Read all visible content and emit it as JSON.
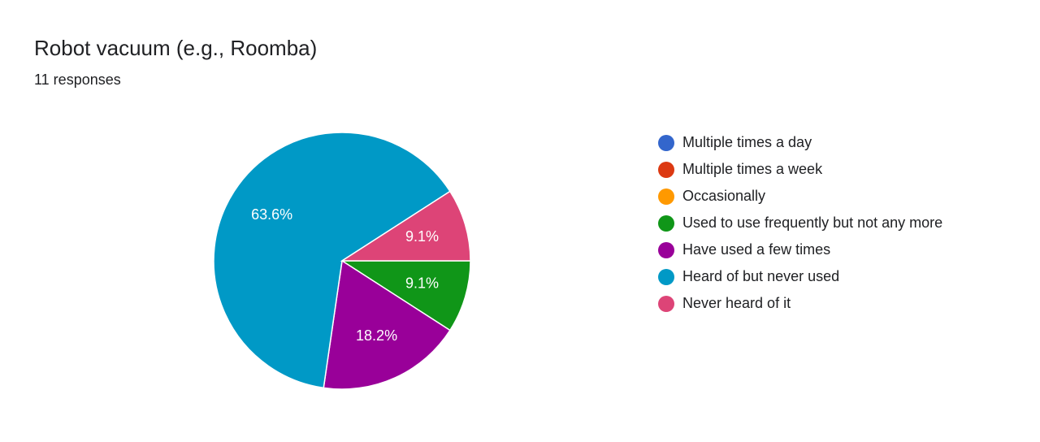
{
  "chart_data": {
    "type": "pie",
    "title": "Robot vacuum (e.g., Roomba)",
    "subtitle": "11 responses",
    "categories": [
      "Multiple times a day",
      "Multiple times a week",
      "Occasionally",
      "Used to use frequently but not any more",
      "Have used a few times",
      "Heard of but never used",
      "Never heard of it"
    ],
    "values": [
      0,
      0,
      0,
      9.1,
      18.2,
      63.6,
      9.1
    ],
    "value_labels": [
      null,
      null,
      null,
      "9.1%",
      "18.2%",
      "63.6%",
      "9.1%"
    ],
    "colors": [
      "#3366cc",
      "#dc3912",
      "#ff9900",
      "#109618",
      "#990099",
      "#0099c6",
      "#dd4477"
    ],
    "legend": "right"
  }
}
